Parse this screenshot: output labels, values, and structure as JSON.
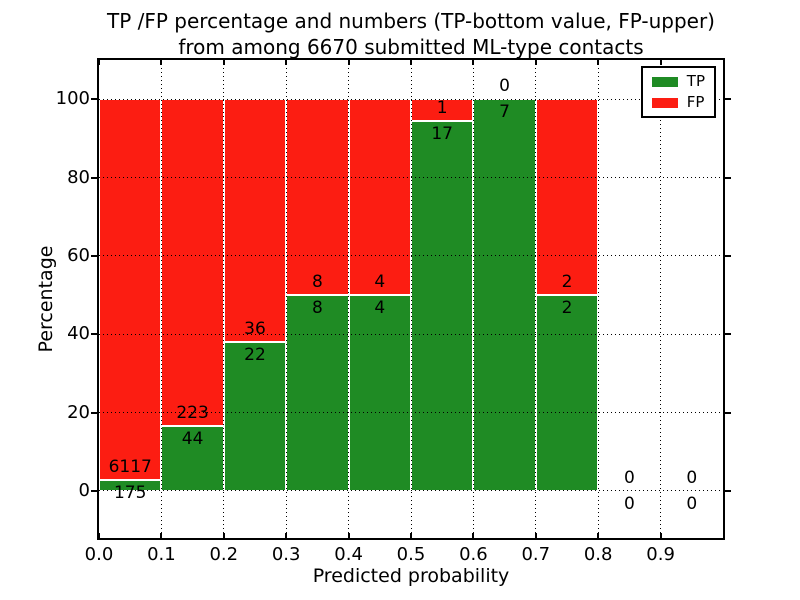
{
  "title": {
    "line1": "TP /FP percentage and numbers (TP-bottom value, FP-upper)",
    "line2": "from among 6670 submitted ML-type contacts"
  },
  "chart_data": {
    "type": "bar",
    "stacked": true,
    "normalized_to_percent": true,
    "title": "TP /FP percentage and numbers (TP-bottom value, FP-upper) from among 6670 submitted ML-type contacts",
    "xlabel": "Predicted probability",
    "ylabel": "Percentage",
    "xlim": [
      0.0,
      1.0
    ],
    "ylim": [
      -12,
      110
    ],
    "x_ticks": [
      "0.0",
      "0.1",
      "0.2",
      "0.3",
      "0.4",
      "0.5",
      "0.6",
      "0.7",
      "0.8",
      "0.9"
    ],
    "y_ticks": [
      "0",
      "20",
      "40",
      "60",
      "80",
      "100"
    ],
    "grid": "dotted",
    "bin_width": 0.1,
    "bin_starts": [
      0.0,
      0.1,
      0.2,
      0.3,
      0.4,
      0.5,
      0.6,
      0.7,
      0.8,
      0.9
    ],
    "series": [
      {
        "name": "TP",
        "color": "#1f8b24",
        "counts": [
          175,
          44,
          22,
          8,
          4,
          17,
          7,
          2,
          0,
          0
        ]
      },
      {
        "name": "FP",
        "color": "#fc1d12",
        "counts": [
          6117,
          223,
          36,
          8,
          4,
          1,
          0,
          2,
          0,
          0
        ]
      }
    ],
    "bar_edge_color": "#ffffff",
    "legend": {
      "position": "upper right",
      "entries": [
        "TP",
        "FP"
      ]
    }
  }
}
